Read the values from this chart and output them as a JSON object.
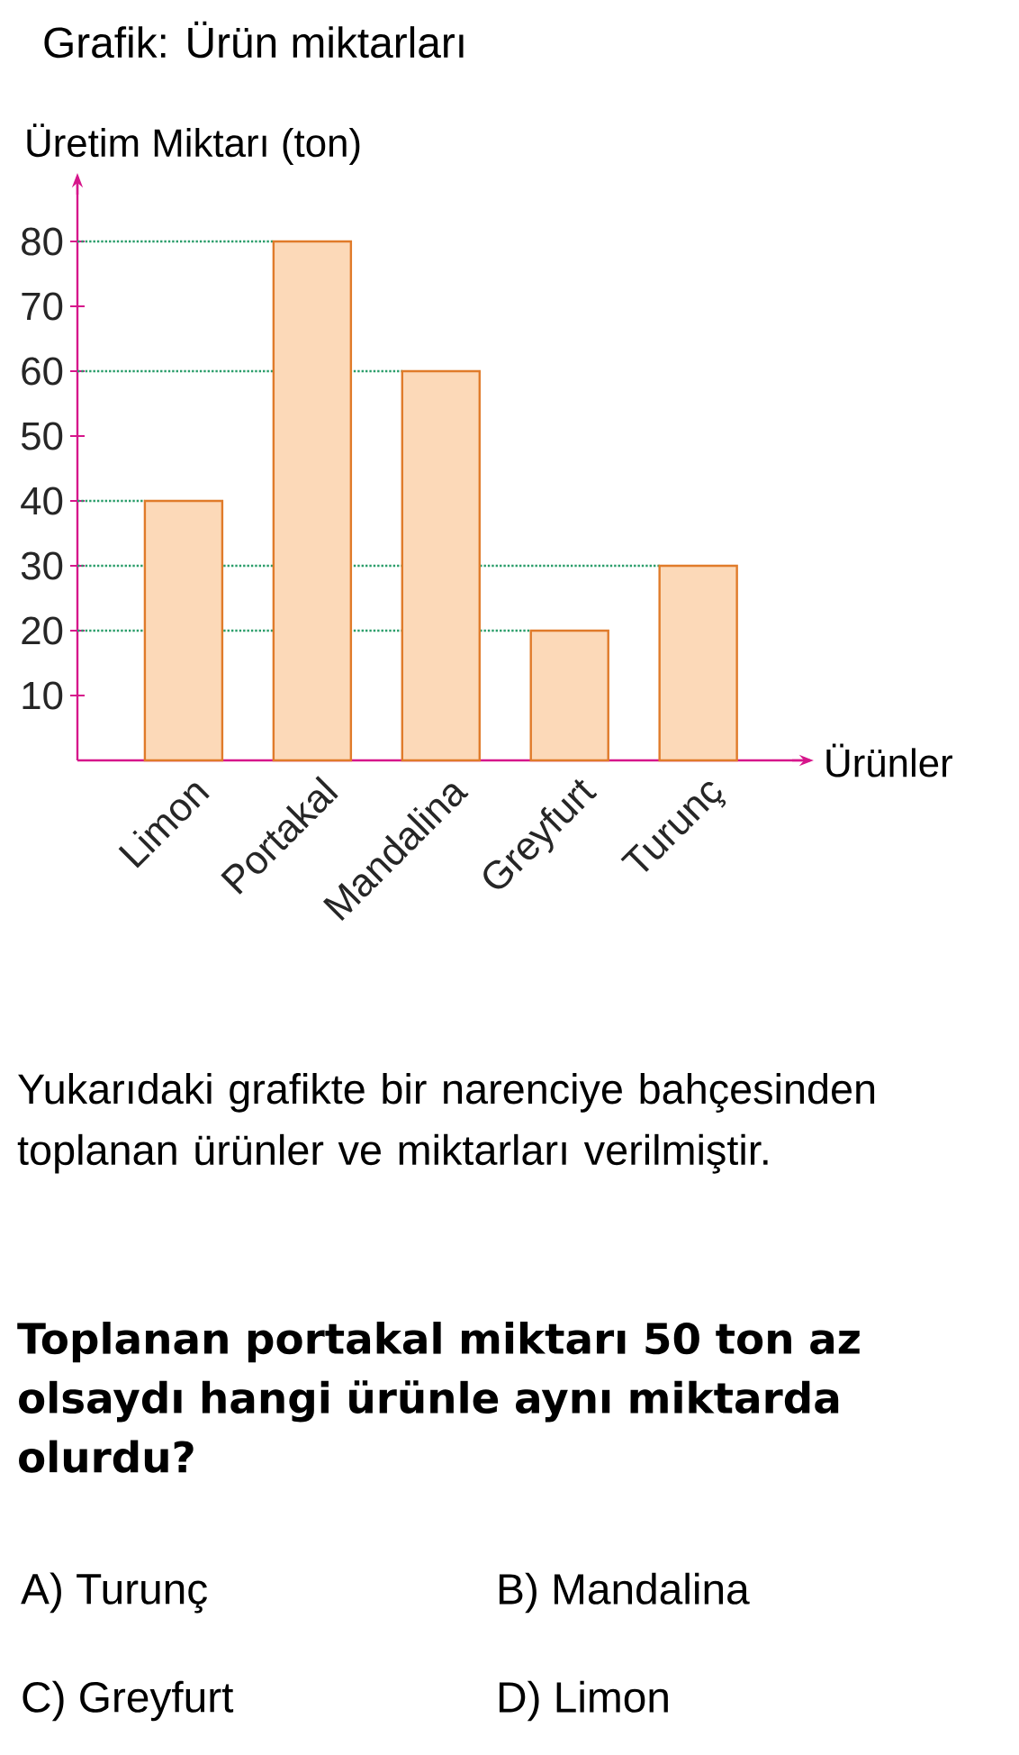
{
  "chart_data": {
    "type": "bar",
    "title": "Grafik: Ürün miktarları",
    "xlabel": "Ürünler",
    "ylabel": "Üretim Miktarı (ton)",
    "categories": [
      "Limon",
      "Portakal",
      "Mandalina",
      "Greyfurt",
      "Turunç"
    ],
    "values": [
      40,
      80,
      60,
      20,
      30
    ],
    "color": "#fcd9b8",
    "ylim": [
      0,
      90
    ],
    "yticks": [
      10,
      20,
      30,
      40,
      50,
      60,
      70,
      80
    ],
    "grid": false,
    "ref_lines": [
      {
        "axis": "y",
        "value": 80,
        "color": "#2a9d6a",
        "line_style": "dotted"
      },
      {
        "axis": "y",
        "value": 60,
        "color": "#2a9d6a",
        "line_style": "dotted"
      },
      {
        "axis": "y",
        "value": 40,
        "color": "#2a9d6a",
        "line_style": "dotted"
      },
      {
        "axis": "y",
        "value": 30,
        "color": "#2a9d6a",
        "line_style": "dotted"
      },
      {
        "axis": "y",
        "value": 20,
        "color": "#2a9d6a",
        "line_style": "dotted"
      }
    ],
    "annotations": [
      "Yukarıdaki grafikte bir narenciye bahçesinden toplanan ürünler ve miktarları verilmiştir.",
      "Toplanan portakal miktarı 50 ton az olsaydı hangi ürünle aynı miktarda olurdu?",
      "A) Turunç",
      "B) Mandalina",
      "C) Greyfurt",
      "D) Limon"
    ]
  }
}
